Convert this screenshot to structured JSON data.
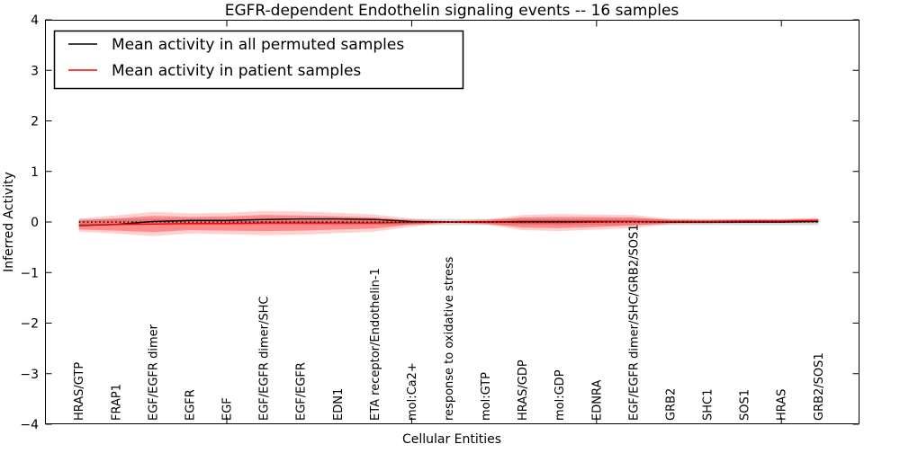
{
  "figure": {
    "title": "EGFR-dependent Endothelin signaling events -- 16 samples"
  },
  "chart_data": {
    "type": "line",
    "title": "EGFR-dependent Endothelin signaling events -- 16 samples",
    "xlabel": "Cellular Entities",
    "ylabel": "Inferred Activity",
    "ylim": [
      -4,
      4
    ],
    "yticks": [
      -4,
      -3,
      -2,
      -1,
      0,
      1,
      2,
      3,
      4
    ],
    "top_tick_indices": [
      4,
      9,
      14,
      19
    ],
    "grid": false,
    "legend_position": "upper left",
    "categories": [
      "HRAS/GTP",
      "FRAP1",
      "EGF/EGFR dimer",
      "EGFR",
      "EGF",
      "EGF/EGFR dimer/SHC",
      "EGF/EGFR",
      "EDN1",
      "ETA receptor/Endothelin-1",
      "mol:Ca2+",
      "response to oxidative stress",
      "mol:GTP",
      "HRAS/GDP",
      "mol:GDP",
      "EDNRA",
      "EGF/EGFR dimer/SHC/GRB2/SOS1",
      "GRB2",
      "SHC1",
      "SOS1",
      "HRAS",
      "GRB2/SOS1"
    ],
    "series": [
      {
        "name": "Mean activity in all permuted samples",
        "color": "#000000",
        "values": [
          -0.07,
          -0.05,
          0.01,
          0.03,
          0.03,
          0.05,
          0.06,
          0.06,
          0.05,
          0.01,
          0.0,
          0.0,
          0.01,
          0.01,
          0.01,
          0.01,
          0.0,
          0.0,
          0.0,
          0.0,
          0.01
        ]
      },
      {
        "name": "Mean activity in patient samples",
        "color": "#ff0000",
        "values": [
          -0.06,
          -0.05,
          -0.04,
          -0.03,
          -0.03,
          -0.02,
          -0.02,
          -0.02,
          -0.02,
          -0.01,
          0.0,
          0.0,
          -0.01,
          -0.01,
          0.0,
          0.01,
          0.01,
          0.01,
          0.02,
          0.02,
          0.03
        ]
      }
    ],
    "bands": [
      {
        "name": "permuted-sample-range",
        "color": "#d9d9d9",
        "opacity": 1.0,
        "center_value": 0,
        "half_widths": [
          0.06,
          0.06,
          0.06,
          0.06,
          0.06,
          0.06,
          0.06,
          0.06,
          0.06,
          0.06,
          0.06,
          0.06,
          0.06,
          0.06,
          0.06,
          0.06,
          0.06,
          0.06,
          0.06,
          0.06,
          0.06
        ]
      },
      {
        "name": "patient-outer-band",
        "color": "#ff0000",
        "opacity": 0.18,
        "center_series": 1,
        "half_widths": [
          0.13,
          0.18,
          0.24,
          0.2,
          0.21,
          0.24,
          0.23,
          0.2,
          0.17,
          0.08,
          0.02,
          0.05,
          0.15,
          0.17,
          0.15,
          0.13,
          0.05,
          0.04,
          0.04,
          0.04,
          0.05
        ]
      },
      {
        "name": "patient-inner-band",
        "color": "#ff0000",
        "opacity": 0.33,
        "center_series": 1,
        "half_widths": [
          0.09,
          0.12,
          0.16,
          0.13,
          0.14,
          0.16,
          0.15,
          0.13,
          0.11,
          0.04,
          0.01,
          0.03,
          0.1,
          0.11,
          0.1,
          0.08,
          0.03,
          0.02,
          0.02,
          0.02,
          0.03
        ]
      }
    ],
    "zero_line": {
      "value": 0,
      "style": "dotted",
      "color": "#000000"
    }
  }
}
